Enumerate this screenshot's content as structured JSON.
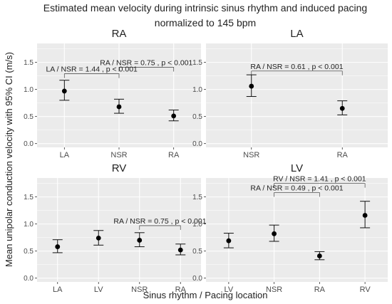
{
  "figure": {
    "title_line1": "Estimated mean velocity during intrinsic sinus rhythm and induced pacing",
    "title_line2": "normalized to 145 bpm",
    "ylabel": "Mean unipolar conduction velocity with 95% CI (m/s)",
    "xlabel": "Sinus rhythm / Pacing location"
  },
  "colors": {
    "panel_background": "#ebebeb",
    "grid": "#ffffff",
    "point": "#000000",
    "text": "#222222",
    "axis_text": "#4d4d4d"
  },
  "chart_data": [
    {
      "type": "scatter",
      "panel": "RA",
      "categories": [
        "LA",
        "NSR",
        "RA"
      ],
      "points": [
        {
          "x": "LA",
          "mean": 0.97,
          "lower": 0.8,
          "upper": 1.17
        },
        {
          "x": "NSR",
          "mean": 0.68,
          "lower": 0.56,
          "upper": 0.82
        },
        {
          "x": "RA",
          "mean": 0.51,
          "lower": 0.42,
          "upper": 0.62
        }
      ],
      "ylim": [
        -0.07,
        1.85
      ],
      "yticks": [
        "0.0",
        "0.5",
        "1.0",
        "1.5"
      ],
      "annotations": [
        {
          "text": "RA / NSR = 0.75 , p < 0.001",
          "from": "NSR",
          "to": "RA",
          "y": 1.41
        },
        {
          "text": "LA / NSR = 1.44 , p < 0.001",
          "from": "LA",
          "to": "NSR",
          "y": 1.29
        }
      ]
    },
    {
      "type": "scatter",
      "panel": "LA",
      "categories": [
        "NSR",
        "RA"
      ],
      "points": [
        {
          "x": "NSR",
          "mean": 1.06,
          "lower": 0.87,
          "upper": 1.27
        },
        {
          "x": "RA",
          "mean": 0.65,
          "lower": 0.53,
          "upper": 0.79
        }
      ],
      "ylim": [
        -0.07,
        1.85
      ],
      "yticks": [
        "0.0",
        "0.5",
        "1.0",
        "1.5"
      ],
      "annotations": [
        {
          "text": "RA / NSR = 0.61 , p < 0.001",
          "from": "NSR",
          "to": "RA",
          "y": 1.34
        }
      ]
    },
    {
      "type": "scatter",
      "panel": "RV",
      "categories": [
        "LA",
        "LV",
        "NSR",
        "RA"
      ],
      "points": [
        {
          "x": "LA",
          "mean": 0.58,
          "lower": 0.47,
          "upper": 0.71
        },
        {
          "x": "LV",
          "mean": 0.74,
          "lower": 0.61,
          "upper": 0.88
        },
        {
          "x": "NSR",
          "mean": 0.7,
          "lower": 0.58,
          "upper": 0.84
        },
        {
          "x": "RA",
          "mean": 0.52,
          "lower": 0.43,
          "upper": 0.63
        }
      ],
      "ylim": [
        -0.07,
        1.85
      ],
      "yticks": [
        "0.0",
        "0.5",
        "1.0",
        "1.5"
      ],
      "annotations": [
        {
          "text": "RA / NSR = 0.75 , p < 0.001",
          "from": "NSR",
          "to": "RA",
          "y": 0.97
        }
      ]
    },
    {
      "type": "scatter",
      "panel": "LV",
      "categories": [
        "LV",
        "NSR",
        "RA",
        "RV"
      ],
      "points": [
        {
          "x": "LV",
          "mean": 0.69,
          "lower": 0.56,
          "upper": 0.83
        },
        {
          "x": "NSR",
          "mean": 0.82,
          "lower": 0.68,
          "upper": 0.98
        },
        {
          "x": "RA",
          "mean": 0.41,
          "lower": 0.34,
          "upper": 0.49
        },
        {
          "x": "RV",
          "mean": 1.16,
          "lower": 0.93,
          "upper": 1.42
        }
      ],
      "ylim": [
        -0.07,
        1.85
      ],
      "yticks": [
        "0.0",
        "0.5",
        "1.0",
        "1.5"
      ],
      "annotations": [
        {
          "text": "RV / NSR = 1.41 , p < 0.001",
          "from": "NSR",
          "to": "RV",
          "y": 1.75
        },
        {
          "text": "RA / NSR = 0.49 , p < 0.001",
          "from": "NSR",
          "to": "RA",
          "y": 1.58
        }
      ]
    }
  ]
}
